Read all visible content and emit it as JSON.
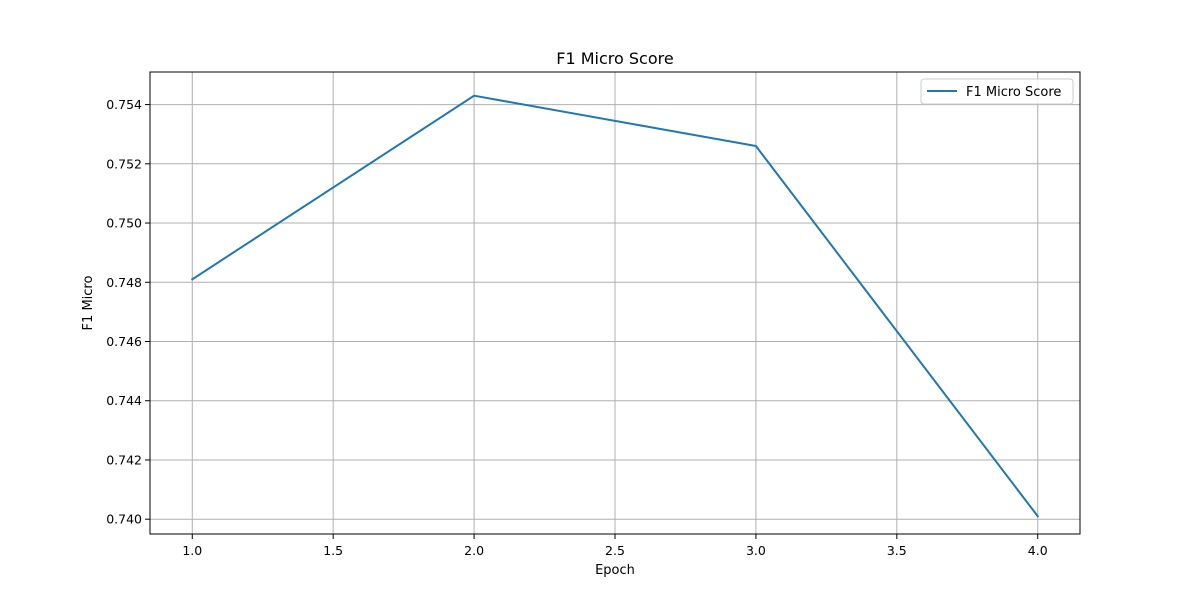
{
  "chart_data": {
    "type": "line",
    "title": "F1 Micro Score",
    "xlabel": "Epoch",
    "ylabel": "F1 Micro",
    "x": [
      1,
      2,
      3,
      4
    ],
    "series": [
      {
        "name": "F1 Micro Score",
        "values": [
          0.7481,
          0.7543,
          0.7526,
          0.7401
        ],
        "color": "#1f77b4"
      }
    ],
    "xlim": [
      0.85,
      4.15
    ],
    "ylim": [
      0.7395,
      0.7551
    ],
    "xticks": [
      1.0,
      1.5,
      2.0,
      2.5,
      3.0,
      3.5,
      4.0
    ],
    "xtick_labels": [
      "1.0",
      "1.5",
      "2.0",
      "2.5",
      "3.0",
      "3.5",
      "4.0"
    ],
    "yticks": [
      0.74,
      0.742,
      0.744,
      0.746,
      0.748,
      0.75,
      0.752,
      0.754
    ],
    "ytick_labels": [
      "0.740",
      "0.742",
      "0.744",
      "0.746",
      "0.748",
      "0.750",
      "0.752",
      "0.754"
    ],
    "grid": true,
    "legend_position": "top-right"
  }
}
